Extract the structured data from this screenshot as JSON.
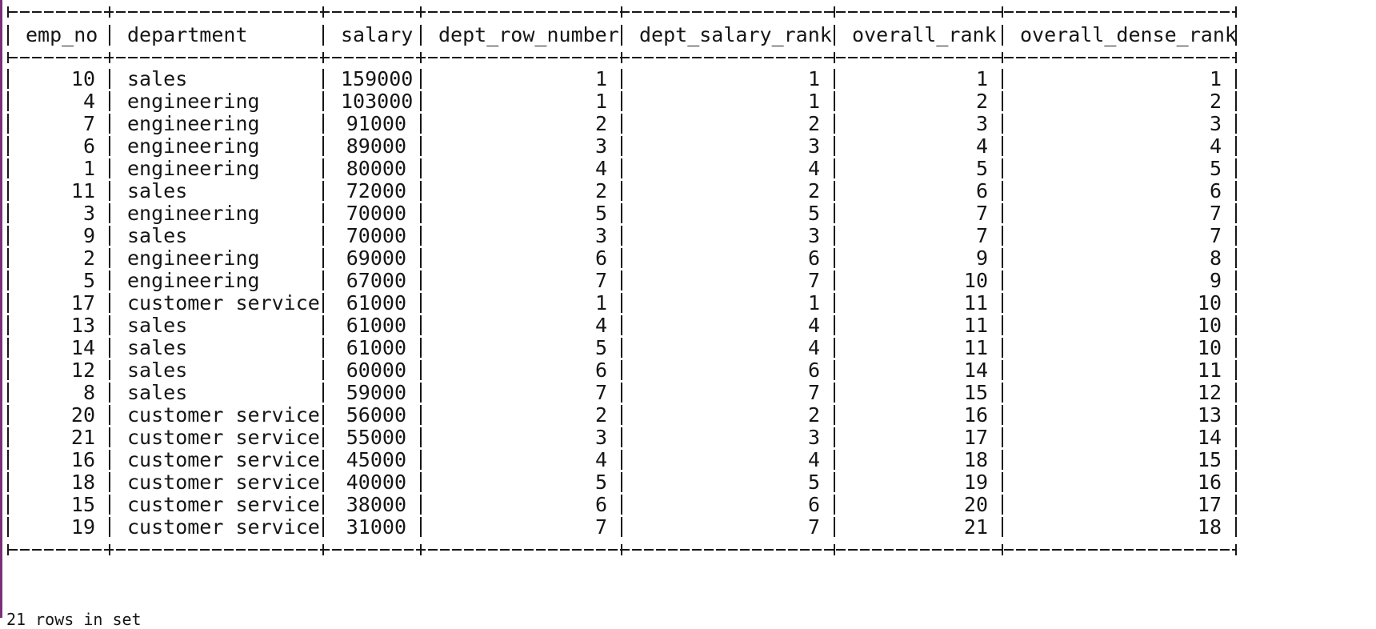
{
  "colors": {
    "background": "#ffffff",
    "text": "#161616",
    "border": "#161616",
    "window_accent": "#7a2f7a"
  },
  "table": {
    "columns": [
      {
        "key": "emp_no",
        "label": "emp_no",
        "align": "right"
      },
      {
        "key": "department",
        "label": "department",
        "align": "left"
      },
      {
        "key": "salary",
        "label": "salary",
        "align": "right"
      },
      {
        "key": "dept_row_number",
        "label": "dept_row_number",
        "align": "right"
      },
      {
        "key": "dept_salary_rank",
        "label": "dept_salary_rank",
        "align": "right"
      },
      {
        "key": "overall_rank",
        "label": "overall_rank",
        "align": "right"
      },
      {
        "key": "overall_dense_rank",
        "label": "overall_dense_rank",
        "align": "right"
      }
    ],
    "rows": [
      [
        "10",
        "sales",
        "159000",
        "1",
        "1",
        "1",
        "1"
      ],
      [
        "4",
        "engineering",
        "103000",
        "1",
        "1",
        "2",
        "2"
      ],
      [
        "7",
        "engineering",
        "91000",
        "2",
        "2",
        "3",
        "3"
      ],
      [
        "6",
        "engineering",
        "89000",
        "3",
        "3",
        "4",
        "4"
      ],
      [
        "1",
        "engineering",
        "80000",
        "4",
        "4",
        "5",
        "5"
      ],
      [
        "11",
        "sales",
        "72000",
        "2",
        "2",
        "6",
        "6"
      ],
      [
        "3",
        "engineering",
        "70000",
        "5",
        "5",
        "7",
        "7"
      ],
      [
        "9",
        "sales",
        "70000",
        "3",
        "3",
        "7",
        "7"
      ],
      [
        "2",
        "engineering",
        "69000",
        "6",
        "6",
        "9",
        "8"
      ],
      [
        "5",
        "engineering",
        "67000",
        "7",
        "7",
        "10",
        "9"
      ],
      [
        "17",
        "customer service",
        "61000",
        "1",
        "1",
        "11",
        "10"
      ],
      [
        "13",
        "sales",
        "61000",
        "4",
        "4",
        "11",
        "10"
      ],
      [
        "14",
        "sales",
        "61000",
        "5",
        "4",
        "11",
        "10"
      ],
      [
        "12",
        "sales",
        "60000",
        "6",
        "6",
        "14",
        "11"
      ],
      [
        "8",
        "sales",
        "59000",
        "7",
        "7",
        "15",
        "12"
      ],
      [
        "20",
        "customer service",
        "56000",
        "2",
        "2",
        "16",
        "13"
      ],
      [
        "21",
        "customer service",
        "55000",
        "3",
        "3",
        "17",
        "14"
      ],
      [
        "16",
        "customer service",
        "45000",
        "4",
        "4",
        "18",
        "15"
      ],
      [
        "18",
        "customer service",
        "40000",
        "5",
        "5",
        "19",
        "16"
      ],
      [
        "15",
        "customer service",
        "38000",
        "6",
        "6",
        "20",
        "17"
      ],
      [
        "19",
        "customer service",
        "31000",
        "7",
        "7",
        "21",
        "18"
      ]
    ]
  },
  "footer": {
    "text": "21 rows in set"
  }
}
